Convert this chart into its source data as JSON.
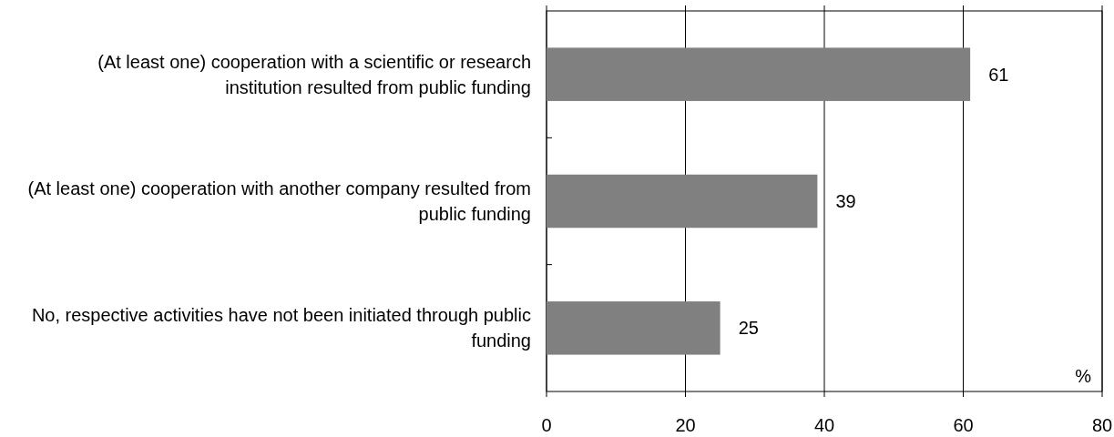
{
  "chart_data": {
    "type": "bar",
    "orientation": "horizontal",
    "categories": [
      "(At least one) cooperation with a scientific or research institution resulted from public funding",
      "(At least one) cooperation with another company resulted from public funding",
      "No, respective activities have not been initiated through public funding"
    ],
    "values": [
      61,
      39,
      25
    ],
    "color": "#808080",
    "data_labels": true,
    "xlabel": "%",
    "xlim": [
      0,
      80
    ],
    "xticks": [
      0,
      20,
      40,
      60,
      80
    ],
    "grid": "x"
  }
}
